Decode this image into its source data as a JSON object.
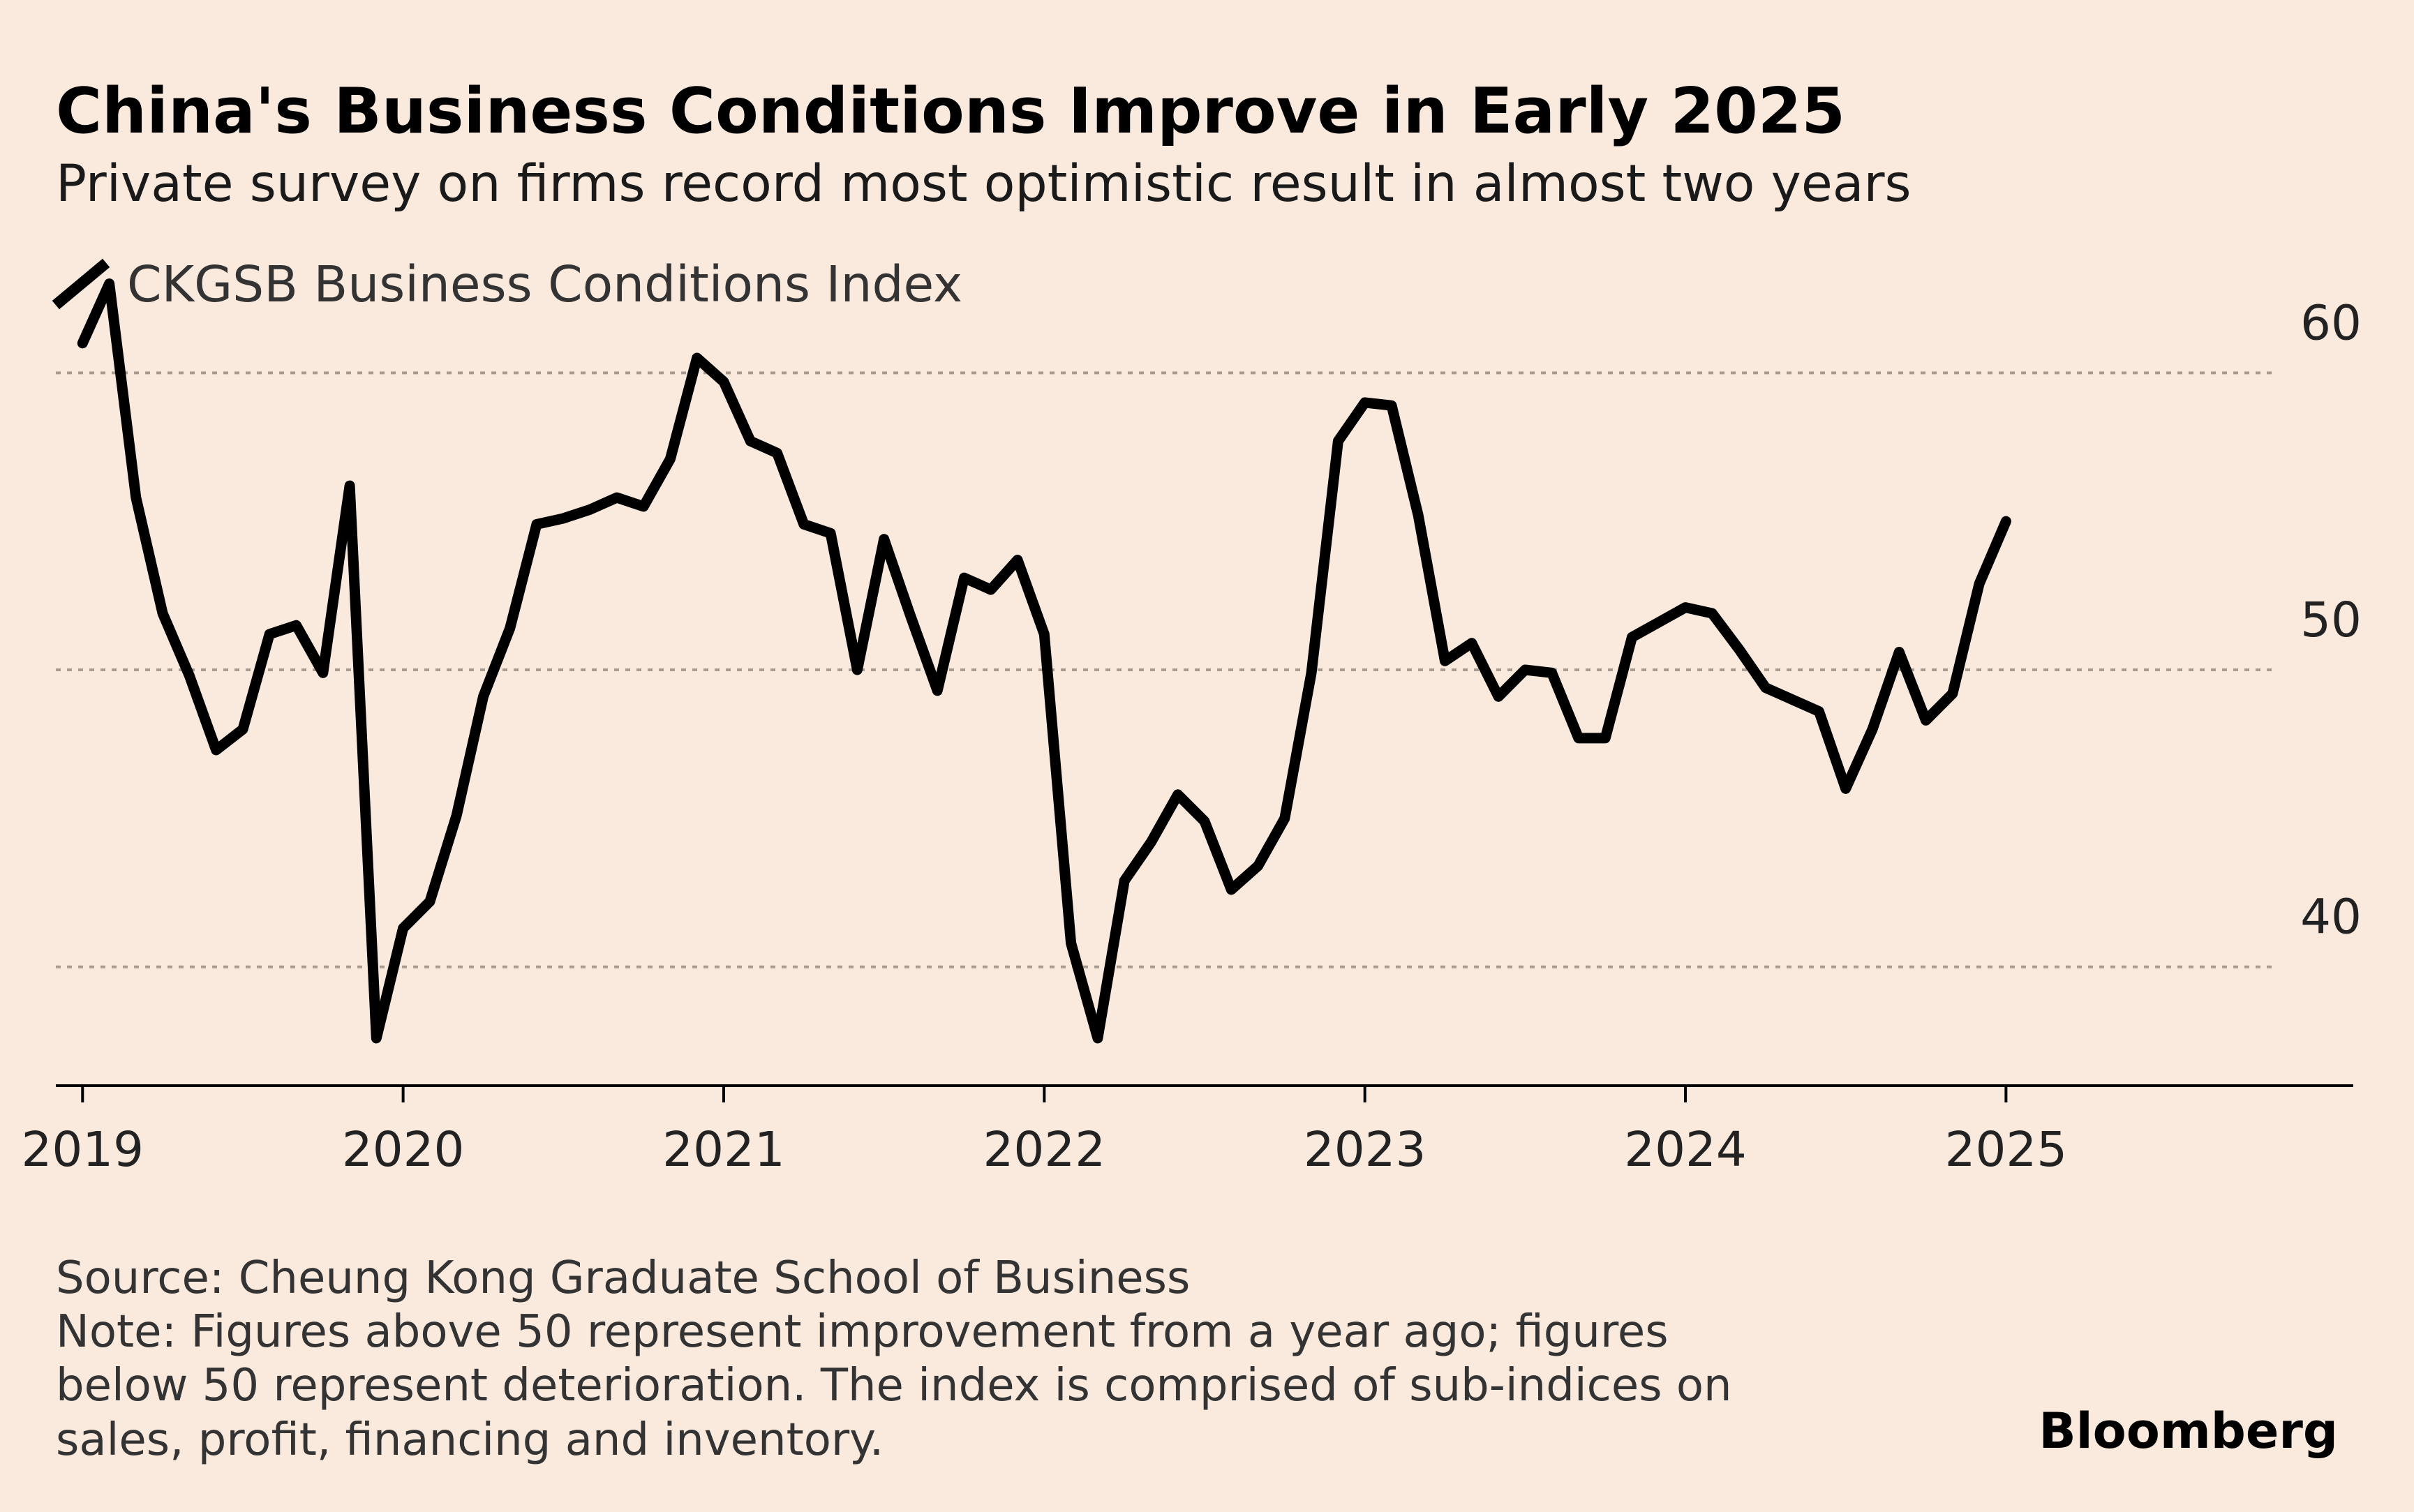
{
  "chart_data": {
    "type": "line",
    "title": "China's Business Conditions Improve in Early 2025",
    "subtitle": "Private survey on firms record most optimistic result in almost two years",
    "series": [
      {
        "name": "CKGSB Business Conditions Index",
        "color": "#000000",
        "points": [
          {
            "x": "2019-01",
            "y": 61.0
          },
          {
            "x": "2019-02",
            "y": 63.0
          },
          {
            "x": "2019-03",
            "y": 55.8
          },
          {
            "x": "2019-04",
            "y": 51.9
          },
          {
            "x": "2019-05",
            "y": 49.8
          },
          {
            "x": "2019-06",
            "y": 47.3
          },
          {
            "x": "2019-07",
            "y": 48.0
          },
          {
            "x": "2019-08",
            "y": 51.2
          },
          {
            "x": "2019-09",
            "y": 51.5
          },
          {
            "x": "2019-10",
            "y": 49.9
          },
          {
            "x": "2019-11",
            "y": 56.2
          },
          {
            "x": "2019-12",
            "y": 37.6
          },
          {
            "x": "2020-01",
            "y": 41.3
          },
          {
            "x": "2020-02",
            "y": 42.2
          },
          {
            "x": "2020-03",
            "y": 45.1
          },
          {
            "x": "2020-04",
            "y": 49.1
          },
          {
            "x": "2020-05",
            "y": 51.4
          },
          {
            "x": "2020-06",
            "y": 54.9
          },
          {
            "x": "2020-07",
            "y": 55.1
          },
          {
            "x": "2020-08",
            "y": 55.4
          },
          {
            "x": "2020-09",
            "y": 55.8
          },
          {
            "x": "2020-10",
            "y": 55.5
          },
          {
            "x": "2020-11",
            "y": 57.1
          },
          {
            "x": "2020-12",
            "y": 60.5
          },
          {
            "x": "2021-01",
            "y": 59.7
          },
          {
            "x": "2021-02",
            "y": 57.7
          },
          {
            "x": "2021-03",
            "y": 57.3
          },
          {
            "x": "2021-04",
            "y": 54.9
          },
          {
            "x": "2021-05",
            "y": 54.6
          },
          {
            "x": "2021-06",
            "y": 50.0
          },
          {
            "x": "2021-07",
            "y": 54.4
          },
          {
            "x": "2021-08",
            "y": 51.8
          },
          {
            "x": "2021-09",
            "y": 49.3
          },
          {
            "x": "2021-10",
            "y": 53.1
          },
          {
            "x": "2021-11",
            "y": 52.7
          },
          {
            "x": "2021-12",
            "y": 53.7
          },
          {
            "x": "2022-01",
            "y": 51.2
          },
          {
            "x": "2022-02",
            "y": 40.8
          },
          {
            "x": "2022-03",
            "y": 37.6
          },
          {
            "x": "2022-04",
            "y": 42.9
          },
          {
            "x": "2022-05",
            "y": 44.2
          },
          {
            "x": "2022-06",
            "y": 45.8
          },
          {
            "x": "2022-07",
            "y": 44.9
          },
          {
            "x": "2022-08",
            "y": 42.6
          },
          {
            "x": "2022-09",
            "y": 43.4
          },
          {
            "x": "2022-10",
            "y": 45.0
          },
          {
            "x": "2022-11",
            "y": 49.9
          },
          {
            "x": "2022-12",
            "y": 57.7
          },
          {
            "x": "2023-01",
            "y": 59.0
          },
          {
            "x": "2023-02",
            "y": 58.9
          },
          {
            "x": "2023-03",
            "y": 55.2
          },
          {
            "x": "2023-04",
            "y": 50.3
          },
          {
            "x": "2023-05",
            "y": 50.9
          },
          {
            "x": "2023-06",
            "y": 49.1
          },
          {
            "x": "2023-07",
            "y": 50.0
          },
          {
            "x": "2023-08",
            "y": 49.9
          },
          {
            "x": "2023-09",
            "y": 47.7
          },
          {
            "x": "2023-10",
            "y": 47.7
          },
          {
            "x": "2023-11",
            "y": 51.1
          },
          {
            "x": "2023-12",
            "y": 51.6
          },
          {
            "x": "2024-01",
            "y": 52.1
          },
          {
            "x": "2024-02",
            "y": 51.9
          },
          {
            "x": "2024-03",
            "y": 50.7
          },
          {
            "x": "2024-04",
            "y": 49.4
          },
          {
            "x": "2024-05",
            "y": 49.0
          },
          {
            "x": "2024-06",
            "y": 48.6
          },
          {
            "x": "2024-07",
            "y": 46.0
          },
          {
            "x": "2024-08",
            "y": 48.0
          },
          {
            "x": "2024-09",
            "y": 50.6
          },
          {
            "x": "2024-10",
            "y": 48.3
          },
          {
            "x": "2024-11",
            "y": 49.2
          },
          {
            "x": "2024-12",
            "y": 52.9
          },
          {
            "x": "2025-01",
            "y": 55.0
          }
        ]
      }
    ],
    "xlabel": "",
    "ylabel": "",
    "x_tick_labels": [
      "2019",
      "2020",
      "2021",
      "2022",
      "2023",
      "2024",
      "2025"
    ],
    "y_ticks": [
      40,
      50,
      60
    ],
    "y_tick_labels": [
      "40",
      "50",
      "60"
    ],
    "ylim": [
      36.0,
      64.8
    ],
    "xlim": [
      "2018-12",
      "2026-02"
    ],
    "grid": "dotted horizontal gridlines at y-ticks",
    "legend_position": "top-left",
    "y_axis_side": "right"
  },
  "footer": {
    "source": "Source: Cheung Kong Graduate School of Business",
    "note_lines": [
      "Note: Figures above 50 represent improvement from a year ago; figures",
      "below 50 represent deterioration. The index is comprised of sub-indices on",
      "sales, profit, financing and inventory."
    ],
    "brand": "Bloomberg"
  },
  "colors": {
    "background": "#faeadd",
    "line": "#000000",
    "grid": "#a89c92",
    "text": "#1a1a1a"
  }
}
